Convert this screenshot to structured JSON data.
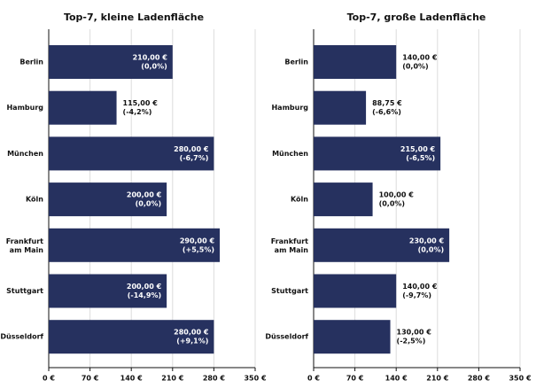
{
  "chart_data": [
    {
      "type": "hbar",
      "title": "Top-7, kleine Ladenfläche",
      "color": "#26315f",
      "categories": [
        "Berlin",
        "Hamburg",
        "München",
        "Köln",
        "Frankfurt am Main",
        "Stuttgart",
        "Düsseldorf"
      ],
      "values": [
        210,
        115,
        280,
        200,
        290,
        200,
        280
      ],
      "value_labels": [
        "210,00 €",
        "115,00 €",
        "280,00 €",
        "200,00 €",
        "290,00 €",
        "200,00 €",
        "280,00 €"
      ],
      "change_labels": [
        "(0,0%)",
        "(-4,2%)",
        "(-6,7%)",
        "(0,0%)",
        "(+5,5%)",
        "(-14,9%)",
        "(+9,1%)"
      ],
      "xlim": [
        0,
        350
      ],
      "xticks": [
        {
          "value": 0,
          "label": "0 €"
        },
        {
          "value": 70,
          "label": "70 €"
        },
        {
          "value": 140,
          "label": "140 €"
        },
        {
          "value": 210,
          "label": "210 €"
        },
        {
          "value": 280,
          "label": "280 €"
        },
        {
          "value": 350,
          "label": "350 €"
        }
      ],
      "grid": true
    },
    {
      "type": "hbar",
      "title": "Top-7, große Ladenfläche",
      "color": "#26315f",
      "categories": [
        "Berlin",
        "Hamburg",
        "München",
        "Köln",
        "Frankfurt am Main",
        "Stuttgart",
        "Düsseldorf"
      ],
      "values": [
        140,
        88.75,
        215,
        100,
        230,
        140,
        130
      ],
      "value_labels": [
        "140,00 €",
        "88,75 €",
        "215,00 €",
        "100,00 €",
        "230,00 €",
        "140,00 €",
        "130,00 €"
      ],
      "change_labels": [
        "(0,0%)",
        "(-6,6%)",
        "(-6,5%)",
        "(0,0%)",
        "(0,0%)",
        "(-9,7%)",
        "(-2,5%)"
      ],
      "xlim": [
        0,
        350
      ],
      "xticks": [
        {
          "value": 0,
          "label": "0 €"
        },
        {
          "value": 70,
          "label": "70 €"
        },
        {
          "value": 140,
          "label": "140 €"
        },
        {
          "value": 210,
          "label": "210 €"
        },
        {
          "value": 280,
          "label": "280 €"
        },
        {
          "value": 350,
          "label": "350 €"
        }
      ],
      "grid": true
    }
  ]
}
